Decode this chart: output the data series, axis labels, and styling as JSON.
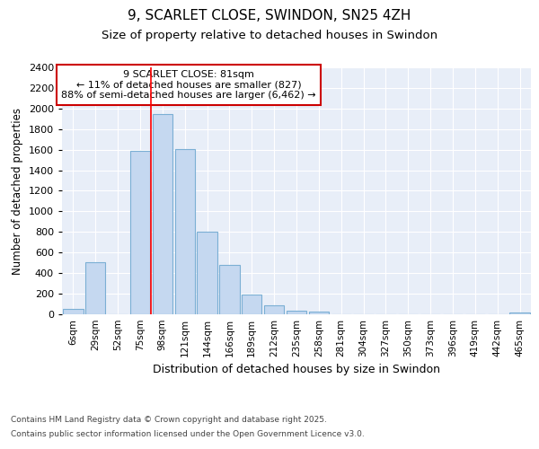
{
  "title1": "9, SCARLET CLOSE, SWINDON, SN25 4ZH",
  "title2": "Size of property relative to detached houses in Swindon",
  "xlabel": "Distribution of detached houses by size in Swindon",
  "ylabel": "Number of detached properties",
  "categories": [
    "6sqm",
    "29sqm",
    "52sqm",
    "75sqm",
    "98sqm",
    "121sqm",
    "144sqm",
    "166sqm",
    "189sqm",
    "212sqm",
    "235sqm",
    "258sqm",
    "281sqm",
    "304sqm",
    "327sqm",
    "350sqm",
    "373sqm",
    "396sqm",
    "419sqm",
    "442sqm",
    "465sqm"
  ],
  "values": [
    50,
    510,
    0,
    1590,
    1950,
    1610,
    800,
    480,
    190,
    85,
    35,
    25,
    0,
    0,
    0,
    0,
    0,
    0,
    0,
    0,
    15
  ],
  "bar_color": "#c5d8f0",
  "bar_edge_color": "#7bafd4",
  "ylim": [
    0,
    2400
  ],
  "yticks": [
    0,
    200,
    400,
    600,
    800,
    1000,
    1200,
    1400,
    1600,
    1800,
    2000,
    2200,
    2400
  ],
  "red_line_x": 3.5,
  "annotation_title": "9 SCARLET CLOSE: 81sqm",
  "annotation_line1": "← 11% of detached houses are smaller (827)",
  "annotation_line2": "88% of semi-detached houses are larger (6,462) →",
  "annotation_box_color": "#cc0000",
  "background_color": "#e8eef8",
  "grid_color": "#ffffff",
  "footer1": "Contains HM Land Registry data © Crown copyright and database right 2025.",
  "footer2": "Contains public sector information licensed under the Open Government Licence v3.0."
}
